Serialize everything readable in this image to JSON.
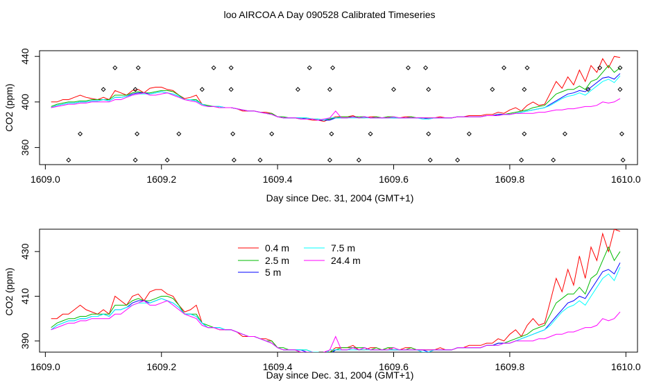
{
  "figure": {
    "title": "loo AIRCOA A  Day 090528  Calibrated Timeseries"
  },
  "chart_data": [
    {
      "type": "line",
      "xlabel": "Day since Dec. 31, 2004 (GMT+1)",
      "ylabel": "CO2 (ppm)",
      "xlim": [
        1608.99,
        1610.02
      ],
      "ylim": [
        345,
        445
      ],
      "xticks": [
        1609.0,
        1609.2,
        1609.4,
        1609.6,
        1609.8,
        1610.0
      ],
      "xtick_labels": [
        "1609.0",
        "1609.2",
        "1609.4",
        "1609.6",
        "1609.8",
        "1610.0"
      ],
      "yticks": [
        360,
        400,
        440
      ],
      "ytick_labels": [
        "360",
        "400",
        "440"
      ],
      "grid": false,
      "x": [
        1609.01,
        1609.02,
        1609.03,
        1609.04,
        1609.05,
        1609.06,
        1609.07,
        1609.08,
        1609.09,
        1609.1,
        1609.11,
        1609.12,
        1609.13,
        1609.14,
        1609.15,
        1609.16,
        1609.17,
        1609.18,
        1609.19,
        1609.2,
        1609.21,
        1609.22,
        1609.23,
        1609.24,
        1609.25,
        1609.26,
        1609.27,
        1609.28,
        1609.29,
        1609.3,
        1609.31,
        1609.32,
        1609.33,
        1609.34,
        1609.35,
        1609.36,
        1609.37,
        1609.38,
        1609.39,
        1609.4,
        1609.41,
        1609.42,
        1609.43,
        1609.44,
        1609.45,
        1609.46,
        1609.47,
        1609.48,
        1609.49,
        1609.5,
        1609.51,
        1609.52,
        1609.53,
        1609.54,
        1609.55,
        1609.56,
        1609.57,
        1609.58,
        1609.59,
        1609.6,
        1609.61,
        1609.62,
        1609.63,
        1609.64,
        1609.65,
        1609.66,
        1609.67,
        1609.68,
        1609.69,
        1609.7,
        1609.71,
        1609.72,
        1609.73,
        1609.74,
        1609.75,
        1609.76,
        1609.77,
        1609.78,
        1609.79,
        1609.8,
        1609.81,
        1609.82,
        1609.83,
        1609.84,
        1609.85,
        1609.86,
        1609.87,
        1609.88,
        1609.89,
        1609.9,
        1609.91,
        1609.92,
        1609.93,
        1609.94,
        1609.95,
        1609.96,
        1609.97,
        1609.98,
        1609.99
      ],
      "series": [
        {
          "values": [
            400,
            400,
            402,
            402,
            404,
            406,
            404,
            403,
            402,
            404,
            402,
            410,
            408,
            406,
            410,
            411,
            408,
            412,
            413,
            413,
            411,
            410,
            406,
            403,
            404,
            406,
            398,
            396,
            396,
            395,
            395,
            395,
            394,
            392,
            392,
            392,
            391,
            391,
            390,
            387,
            386,
            386,
            386,
            385,
            385,
            384,
            384,
            383,
            385,
            387,
            387,
            387,
            388,
            386,
            386,
            387,
            387,
            386,
            387,
            386,
            386,
            387,
            387,
            386,
            386,
            386,
            386,
            387,
            386,
            386,
            387,
            387,
            388,
            388,
            388,
            389,
            389,
            391,
            390,
            393,
            395,
            392,
            397,
            400,
            397,
            398,
            408,
            418,
            412,
            422,
            415,
            428,
            418,
            432,
            426,
            438,
            430,
            440,
            439
          ]
        },
        {
          "values": [
            396,
            398,
            399,
            400,
            400,
            401,
            401,
            402,
            402,
            402,
            402,
            406,
            406,
            406,
            408,
            409,
            408,
            408,
            409,
            410,
            410,
            409,
            406,
            402,
            402,
            402,
            398,
            397,
            396,
            396,
            395,
            395,
            394,
            393,
            392,
            392,
            391,
            390,
            390,
            387,
            387,
            386,
            386,
            386,
            386,
            385,
            385,
            384,
            385,
            386,
            387,
            387,
            387,
            387,
            387,
            386,
            387,
            386,
            387,
            387,
            386,
            386,
            387,
            386,
            386,
            386,
            386,
            386,
            386,
            386,
            387,
            387,
            387,
            387,
            387,
            388,
            388,
            389,
            389,
            390,
            391,
            392,
            393,
            395,
            396,
            397,
            402,
            407,
            409,
            411,
            411,
            414,
            411,
            418,
            420,
            426,
            432,
            426,
            430
          ]
        },
        {
          "values": [
            395,
            397,
            398,
            399,
            399,
            400,
            400,
            401,
            401,
            402,
            401,
            404,
            404,
            405,
            407,
            408,
            408,
            407,
            408,
            409,
            408,
            407,
            405,
            402,
            402,
            401,
            398,
            396,
            396,
            396,
            395,
            395,
            394,
            393,
            392,
            392,
            391,
            390,
            389,
            387,
            386,
            386,
            386,
            386,
            385,
            385,
            384,
            384,
            384,
            386,
            386,
            386,
            387,
            386,
            387,
            386,
            386,
            386,
            386,
            386,
            386,
            386,
            386,
            386,
            386,
            385,
            386,
            386,
            386,
            386,
            387,
            387,
            387,
            387,
            387,
            388,
            388,
            389,
            389,
            389,
            390,
            391,
            392,
            393,
            394,
            395,
            398,
            401,
            404,
            407,
            408,
            410,
            409,
            413,
            417,
            421,
            422,
            420,
            425
          ]
        },
        {
          "values": [
            395,
            397,
            398,
            399,
            399,
            400,
            400,
            401,
            401,
            402,
            401,
            404,
            404,
            405,
            406,
            407,
            407,
            407,
            408,
            409,
            408,
            407,
            405,
            402,
            402,
            401,
            398,
            396,
            396,
            396,
            395,
            395,
            394,
            393,
            392,
            392,
            391,
            390,
            389,
            387,
            386,
            386,
            386,
            386,
            386,
            385,
            385,
            384,
            386,
            386,
            386,
            386,
            386,
            386,
            386,
            386,
            386,
            386,
            386,
            386,
            386,
            386,
            386,
            386,
            385,
            385,
            386,
            386,
            386,
            386,
            387,
            387,
            387,
            387,
            387,
            388,
            388,
            388,
            389,
            389,
            390,
            391,
            392,
            393,
            394,
            395,
            397,
            400,
            403,
            405,
            406,
            408,
            406,
            410,
            414,
            418,
            420,
            417,
            423
          ]
        },
        {
          "values": [
            395,
            396,
            397,
            398,
            398,
            399,
            399,
            400,
            400,
            400,
            400,
            402,
            402,
            404,
            406,
            407,
            408,
            406,
            406,
            407,
            408,
            406,
            404,
            402,
            401,
            400,
            397,
            396,
            396,
            395,
            395,
            395,
            394,
            393,
            392,
            392,
            391,
            390,
            389,
            387,
            386,
            386,
            386,
            385,
            385,
            385,
            384,
            385,
            386,
            392,
            386,
            386,
            387,
            386,
            387,
            386,
            386,
            386,
            386,
            387,
            386,
            386,
            386,
            386,
            386,
            386,
            386,
            386,
            386,
            386,
            387,
            387,
            387,
            387,
            387,
            388,
            388,
            388,
            389,
            389,
            390,
            390,
            390,
            390,
            391,
            391,
            392,
            393,
            393,
            394,
            394,
            395,
            396,
            396,
            397,
            400,
            399,
            400,
            403
          ]
        }
      ],
      "markers": [
        {
          "x": 1609.04,
          "y": 349
        },
        {
          "x": 1609.06,
          "y": 372
        },
        {
          "x": 1609.1,
          "y": 411
        },
        {
          "x": 1609.12,
          "y": 430
        },
        {
          "x": 1609.155,
          "y": 349
        },
        {
          "x": 1609.155,
          "y": 411
        },
        {
          "x": 1609.158,
          "y": 372
        },
        {
          "x": 1609.16,
          "y": 430
        },
        {
          "x": 1609.21,
          "y": 349
        },
        {
          "x": 1609.23,
          "y": 372
        },
        {
          "x": 1609.27,
          "y": 411
        },
        {
          "x": 1609.29,
          "y": 430
        },
        {
          "x": 1609.32,
          "y": 430
        },
        {
          "x": 1609.32,
          "y": 411
        },
        {
          "x": 1609.323,
          "y": 372
        },
        {
          "x": 1609.325,
          "y": 349
        },
        {
          "x": 1609.37,
          "y": 349
        },
        {
          "x": 1609.39,
          "y": 372
        },
        {
          "x": 1609.435,
          "y": 411
        },
        {
          "x": 1609.455,
          "y": 430
        },
        {
          "x": 1609.49,
          "y": 411
        },
        {
          "x": 1609.49,
          "y": 349
        },
        {
          "x": 1609.493,
          "y": 372
        },
        {
          "x": 1609.495,
          "y": 430
        },
        {
          "x": 1609.54,
          "y": 349
        },
        {
          "x": 1609.56,
          "y": 372
        },
        {
          "x": 1609.6,
          "y": 411
        },
        {
          "x": 1609.625,
          "y": 430
        },
        {
          "x": 1609.655,
          "y": 430
        },
        {
          "x": 1609.66,
          "y": 411
        },
        {
          "x": 1609.66,
          "y": 372
        },
        {
          "x": 1609.663,
          "y": 349
        },
        {
          "x": 1609.71,
          "y": 349
        },
        {
          "x": 1609.73,
          "y": 372
        },
        {
          "x": 1609.77,
          "y": 411
        },
        {
          "x": 1609.79,
          "y": 430
        },
        {
          "x": 1609.82,
          "y": 349
        },
        {
          "x": 1609.825,
          "y": 372
        },
        {
          "x": 1609.825,
          "y": 411
        },
        {
          "x": 1609.83,
          "y": 430
        },
        {
          "x": 1609.875,
          "y": 349
        },
        {
          "x": 1609.895,
          "y": 372
        },
        {
          "x": 1609.935,
          "y": 411
        },
        {
          "x": 1609.955,
          "y": 430
        },
        {
          "x": 1609.99,
          "y": 430
        },
        {
          "x": 1609.99,
          "y": 411
        },
        {
          "x": 1609.993,
          "y": 372
        },
        {
          "x": 1609.995,
          "y": 349
        }
      ]
    },
    {
      "type": "line",
      "xlabel": "Day since Dec. 31, 2004 (GMT+1)",
      "ylabel": "CO2 (ppm)",
      "xlim": [
        1608.99,
        1610.02
      ],
      "ylim": [
        385,
        440
      ],
      "xticks": [
        1609.0,
        1609.2,
        1609.4,
        1609.6,
        1609.8,
        1610.0
      ],
      "xtick_labels": [
        "1609.0",
        "1609.2",
        "1609.4",
        "1609.6",
        "1609.8",
        "1610.0"
      ],
      "yticks": [
        390,
        410,
        430
      ],
      "ytick_labels": [
        "390",
        "410",
        "430"
      ],
      "grid": false,
      "legend_position": "top-center",
      "series_ref": 0,
      "legend": [
        {
          "name": "0.4 m",
          "color": "#ff0000"
        },
        {
          "name": "2.5 m",
          "color": "#00bb00"
        },
        {
          "name": "5 m",
          "color": "#0000ff"
        },
        {
          "name": "7.5 m",
          "color": "#00ffff"
        },
        {
          "name": "24.4 m",
          "color": "#ff00ff"
        }
      ]
    }
  ],
  "colors": [
    "#ff0000",
    "#00bb00",
    "#0000ff",
    "#00ffff",
    "#ff00ff"
  ]
}
